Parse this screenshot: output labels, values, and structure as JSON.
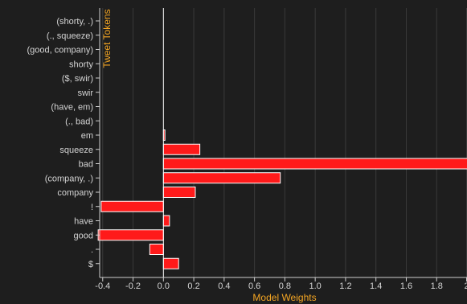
{
  "chart_data": {
    "type": "bar",
    "orientation": "horizontal",
    "xlabel": "Model Weights",
    "ylabel": "Tweet Tokens",
    "xlim": [
      -0.42,
      2.0
    ],
    "x_ticks": [
      -0.4,
      -0.2,
      0.0,
      0.2,
      0.4,
      0.6,
      0.8,
      1.0,
      1.2,
      1.4,
      1.6,
      1.8,
      2.0
    ],
    "x_tick_labels": [
      "-0.4",
      "-0.2",
      "0.0",
      "0.2",
      "0.4",
      "0.6",
      "0.8",
      "1.0",
      "1.2",
      "1.4",
      "1.6",
      "1.8",
      "2"
    ],
    "grid": true,
    "bar_color": "#ff1a1a",
    "axis_title_color": "#f5a623",
    "categories": [
      "(shorty, .)",
      "(., squeeze)",
      "(good, company)",
      "shorty",
      "($, swir)",
      "swir",
      "(have, em)",
      "(., bad)",
      "em",
      "squeeze",
      "bad",
      "(company, .)",
      "company",
      "!",
      "have",
      "good",
      ".",
      "$"
    ],
    "values": [
      0,
      0,
      0,
      0,
      0,
      0,
      0,
      0,
      0.01,
      0.24,
      2.02,
      0.77,
      0.21,
      -0.41,
      0.04,
      -0.43,
      -0.09,
      0.1
    ]
  }
}
